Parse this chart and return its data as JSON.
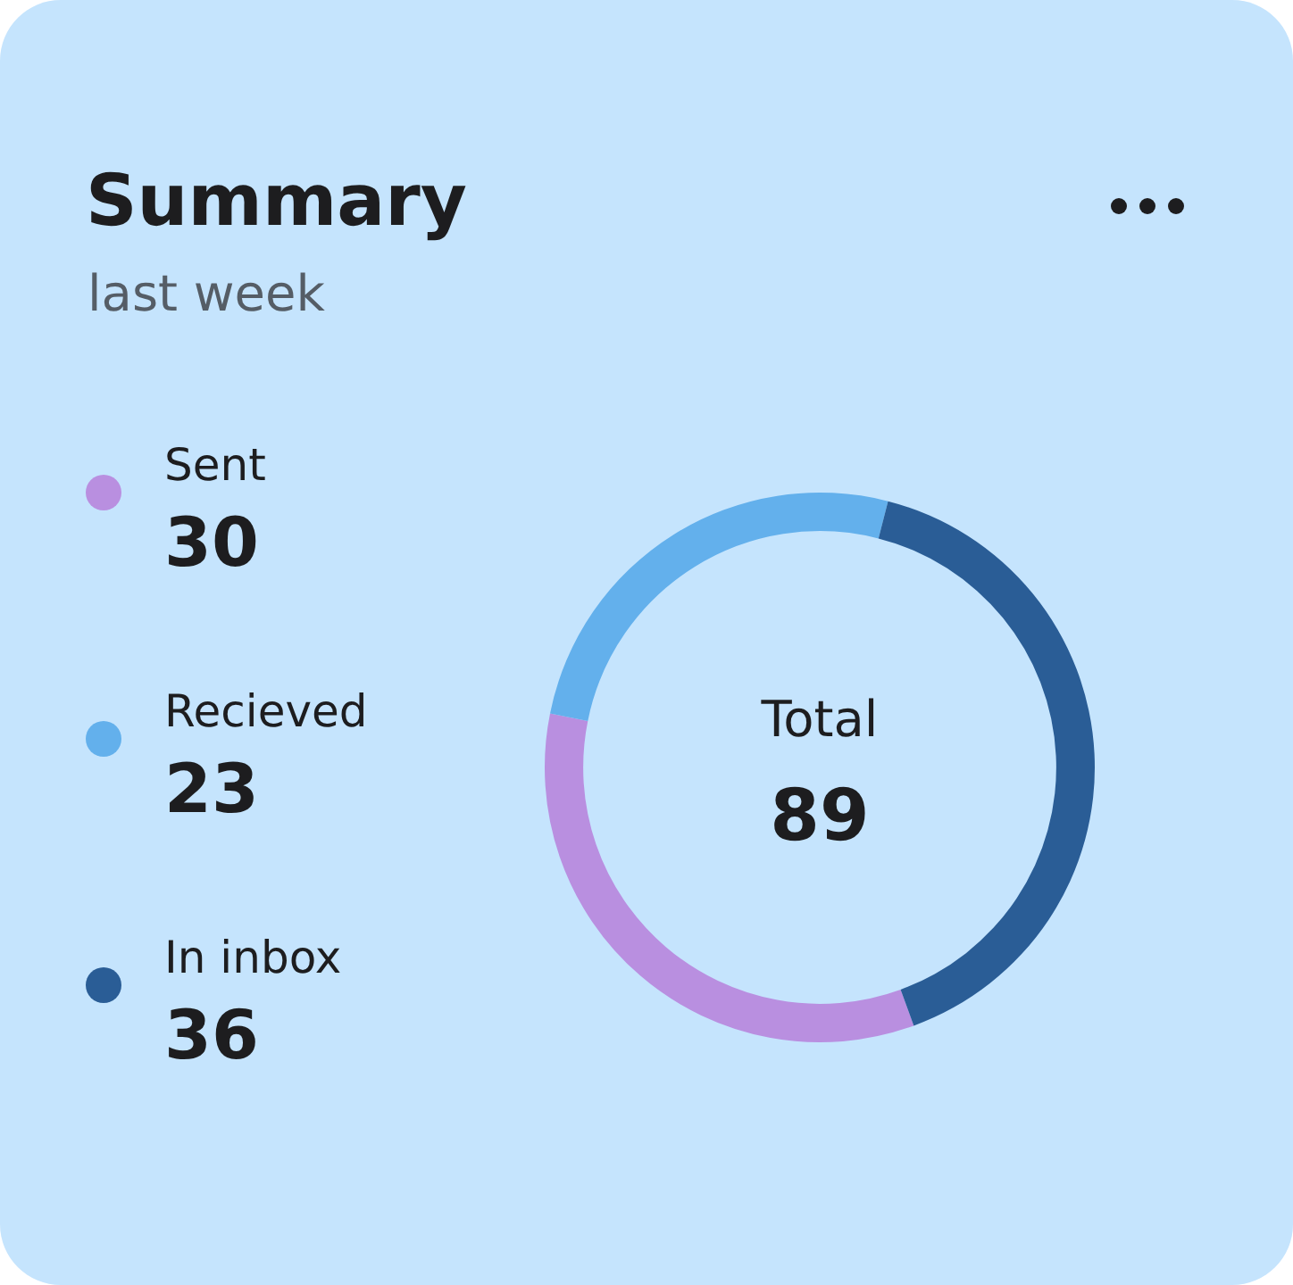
{
  "chart_data": {
    "type": "donut",
    "title": "Summary",
    "subtitle": "last week",
    "categories": [
      "Sent",
      "Recieved",
      "In inbox"
    ],
    "values": [
      30,
      23,
      36
    ],
    "colors": [
      "#b98fe0",
      "#63b0ec",
      "#2a5d96"
    ],
    "annotations": [
      "Total",
      "89"
    ],
    "legend": "left",
    "data_labels": true
  }
}
